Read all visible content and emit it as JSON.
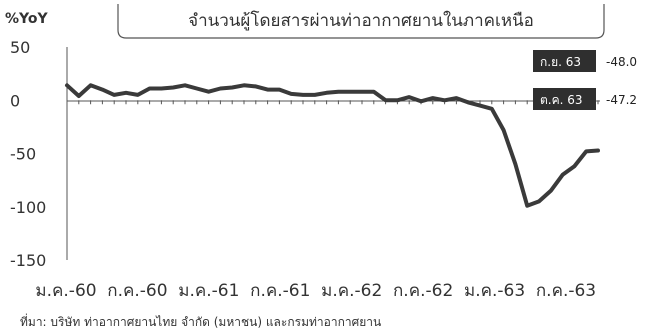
{
  "chart_data": {
    "type": "line",
    "title": "จำนวนผู้โดยสารผ่านท่าอากาศยานในภาคเหนือ",
    "ylabel": "%YoY",
    "xlabel": "",
    "ylim": [
      -150,
      50
    ],
    "yticks": [
      "50",
      "0",
      "-50",
      "-100",
      "-150"
    ],
    "ytick_values": [
      50,
      0,
      -50,
      -100,
      -150
    ],
    "xtick_labels": [
      "ม.ค.-60",
      "ก.ค.-60",
      "ม.ค.-61",
      "ก.ค.-61",
      "ม.ค.-62",
      "ก.ค.-62",
      "ม.ค.-63",
      "ก.ค.-63"
    ],
    "x": [
      "2017-01",
      "2017-02",
      "2017-03",
      "2017-04",
      "2017-05",
      "2017-06",
      "2017-07",
      "2017-08",
      "2017-09",
      "2017-10",
      "2017-11",
      "2017-12",
      "2018-01",
      "2018-02",
      "2018-03",
      "2018-04",
      "2018-05",
      "2018-06",
      "2018-07",
      "2018-08",
      "2018-09",
      "2018-10",
      "2018-11",
      "2018-12",
      "2019-01",
      "2019-02",
      "2019-03",
      "2019-04",
      "2019-05",
      "2019-06",
      "2019-07",
      "2019-08",
      "2019-09",
      "2019-10",
      "2019-11",
      "2019-12",
      "2020-01",
      "2020-02",
      "2020-03",
      "2020-04",
      "2020-05",
      "2020-06",
      "2020-07",
      "2020-08",
      "2020-09",
      "2020-10"
    ],
    "series": [
      {
        "name": "",
        "color": "#3a3a3a",
        "values": [
          14,
          4,
          14,
          10,
          5,
          7,
          5,
          11,
          11,
          12,
          14,
          11,
          8,
          11,
          12,
          14,
          13,
          10,
          10,
          6,
          5,
          5,
          7,
          8,
          8,
          8,
          8,
          0,
          0,
          3,
          -1,
          2,
          0,
          2,
          -2,
          -5,
          -8,
          -28,
          -60,
          -99,
          -95,
          -85,
          -70,
          -62,
          -48,
          -47.2
        ]
      }
    ],
    "grid": false,
    "legend": "none",
    "callouts": [
      {
        "label": "ก.ย. 63",
        "value": "-48.0"
      },
      {
        "label": "ต.ค. 63",
        "value": "-47.2"
      }
    ]
  },
  "source": "ที่มา: บริษัท ท่าอากาศยานไทย จำกัด (มหาชน) และกรมท่าอากาศยาน",
  "colors": {
    "line": "#3a3a3a",
    "axis": "#555555",
    "callout_bg": "#2f2f2f"
  }
}
